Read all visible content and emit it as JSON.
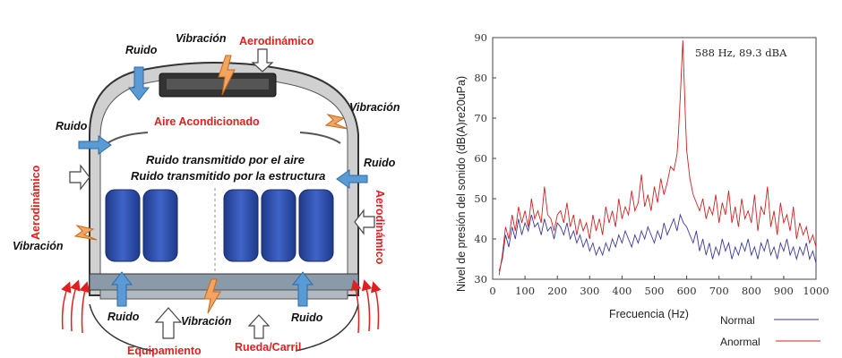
{
  "diagram": {
    "labels": {
      "ruido_top": "Ruido",
      "vibracion_top": "Vibración",
      "aerodinamico_top": "Aerodinámico",
      "aire_acondicionado": "Aire Acondicionado",
      "ruido_left": "Ruido",
      "vibracion_right_top": "Vibración",
      "aerodinamico_left": "Aerodinámico",
      "ruido_right": "Ruido",
      "aerodinamico_right": "Aerodinámico",
      "vibracion_left": "Vibración",
      "ruido_aire": "Ruido transmitido por el aire",
      "ruido_estructura": "Ruido transmitido por la estructura",
      "ruido_bottom_left": "Ruido",
      "vibracion_bottom": "Vibración",
      "ruido_bottom_right": "Ruido",
      "equipamiento": "Equipamiento",
      "rueda_carril": "Rueda/Carril"
    },
    "colors": {
      "red_label": "#e02020",
      "noise_arrow": "#5b9bd5",
      "vibration": "#f4a460",
      "seat": "#2f4f9f"
    }
  },
  "chart_data": {
    "type": "line",
    "title": "",
    "xlabel": "Frecuencia (Hz)",
    "ylabel": "Nivel de presión del sonido (dB(A)re20uPa)",
    "xlim": [
      0,
      1000
    ],
    "ylim": [
      30,
      90
    ],
    "xticks": [
      0,
      100,
      200,
      300,
      400,
      500,
      600,
      700,
      800,
      900,
      1000
    ],
    "yticks": [
      30,
      40,
      50,
      60,
      70,
      80,
      90
    ],
    "annotation": {
      "text": "588 Hz, 89.3 dBA",
      "x": 588,
      "y": 89.3
    },
    "series": [
      {
        "name": "Normal",
        "color": "#3a3a9a",
        "x": [
          20,
          30,
          40,
          50,
          60,
          70,
          80,
          90,
          100,
          110,
          120,
          130,
          140,
          150,
          160,
          170,
          180,
          190,
          200,
          210,
          220,
          230,
          240,
          250,
          260,
          270,
          280,
          290,
          300,
          310,
          320,
          330,
          340,
          350,
          360,
          370,
          380,
          390,
          400,
          410,
          420,
          430,
          440,
          450,
          460,
          470,
          480,
          490,
          500,
          510,
          520,
          530,
          540,
          550,
          560,
          570,
          580,
          590,
          600,
          610,
          620,
          630,
          640,
          650,
          660,
          670,
          680,
          690,
          700,
          710,
          720,
          730,
          740,
          750,
          760,
          770,
          780,
          790,
          800,
          810,
          820,
          830,
          840,
          850,
          860,
          870,
          880,
          890,
          900,
          910,
          920,
          930,
          940,
          950,
          960,
          970,
          980,
          990,
          1000
        ],
        "y": [
          32,
          35,
          41,
          38,
          43,
          40,
          45,
          41,
          44,
          42,
          46,
          43,
          44,
          41,
          45,
          42,
          43,
          40,
          44,
          43,
          41,
          44,
          40,
          42,
          39,
          41,
          38,
          40,
          37,
          39,
          36,
          38,
          36,
          39,
          37,
          40,
          38,
          41,
          39,
          42,
          40,
          38,
          41,
          39,
          42,
          40,
          43,
          41,
          39,
          42,
          40,
          44,
          41,
          43,
          45,
          42,
          46,
          44,
          43,
          41,
          39,
          42,
          37,
          40,
          36,
          39,
          35,
          38,
          36,
          40,
          37,
          39,
          35,
          38,
          36,
          39,
          37,
          40,
          36,
          38,
          35,
          39,
          37,
          40,
          36,
          38,
          35,
          39,
          37,
          40,
          36,
          38,
          35,
          38,
          36,
          39,
          35,
          37,
          34
        ]
      },
      {
        "name": "Anormal",
        "color": "#cc2222",
        "x": [
          20,
          30,
          40,
          50,
          60,
          70,
          80,
          90,
          100,
          110,
          120,
          130,
          140,
          150,
          160,
          170,
          180,
          190,
          200,
          210,
          220,
          230,
          240,
          250,
          260,
          270,
          280,
          290,
          300,
          310,
          320,
          330,
          340,
          350,
          360,
          370,
          380,
          390,
          400,
          410,
          420,
          430,
          440,
          450,
          460,
          470,
          480,
          490,
          500,
          510,
          520,
          530,
          540,
          550,
          560,
          570,
          575,
          580,
          585,
          588,
          592,
          596,
          600,
          610,
          620,
          630,
          640,
          650,
          660,
          670,
          680,
          690,
          700,
          710,
          720,
          730,
          740,
          750,
          760,
          770,
          780,
          790,
          800,
          810,
          820,
          830,
          840,
          850,
          860,
          870,
          880,
          890,
          900,
          910,
          920,
          930,
          940,
          950,
          960,
          970,
          980,
          990,
          1000
        ],
        "y": [
          31,
          36,
          43,
          40,
          46,
          42,
          48,
          44,
          47,
          43,
          50,
          45,
          47,
          44,
          53,
          46,
          45,
          42,
          46,
          47,
          44,
          49,
          43,
          46,
          41,
          45,
          42,
          44,
          40,
          46,
          42,
          45,
          41,
          48,
          44,
          47,
          43,
          50,
          45,
          48,
          46,
          52,
          47,
          49,
          56,
          48,
          51,
          47,
          53,
          49,
          55,
          51,
          54,
          58,
          57,
          61,
          67,
          75,
          84,
          89.3,
          80,
          70,
          62,
          55,
          51,
          49,
          47,
          50,
          45,
          48,
          46,
          51,
          44,
          49,
          46,
          52,
          44,
          48,
          43,
          50,
          45,
          47,
          44,
          51,
          42,
          48,
          46,
          53,
          43,
          47,
          41,
          49,
          44,
          46,
          42,
          48,
          40,
          44,
          41,
          43,
          39,
          41,
          38
        ]
      }
    ],
    "legend": {
      "position": "bottom-right",
      "entries": [
        "Normal",
        "Anormal"
      ]
    }
  }
}
